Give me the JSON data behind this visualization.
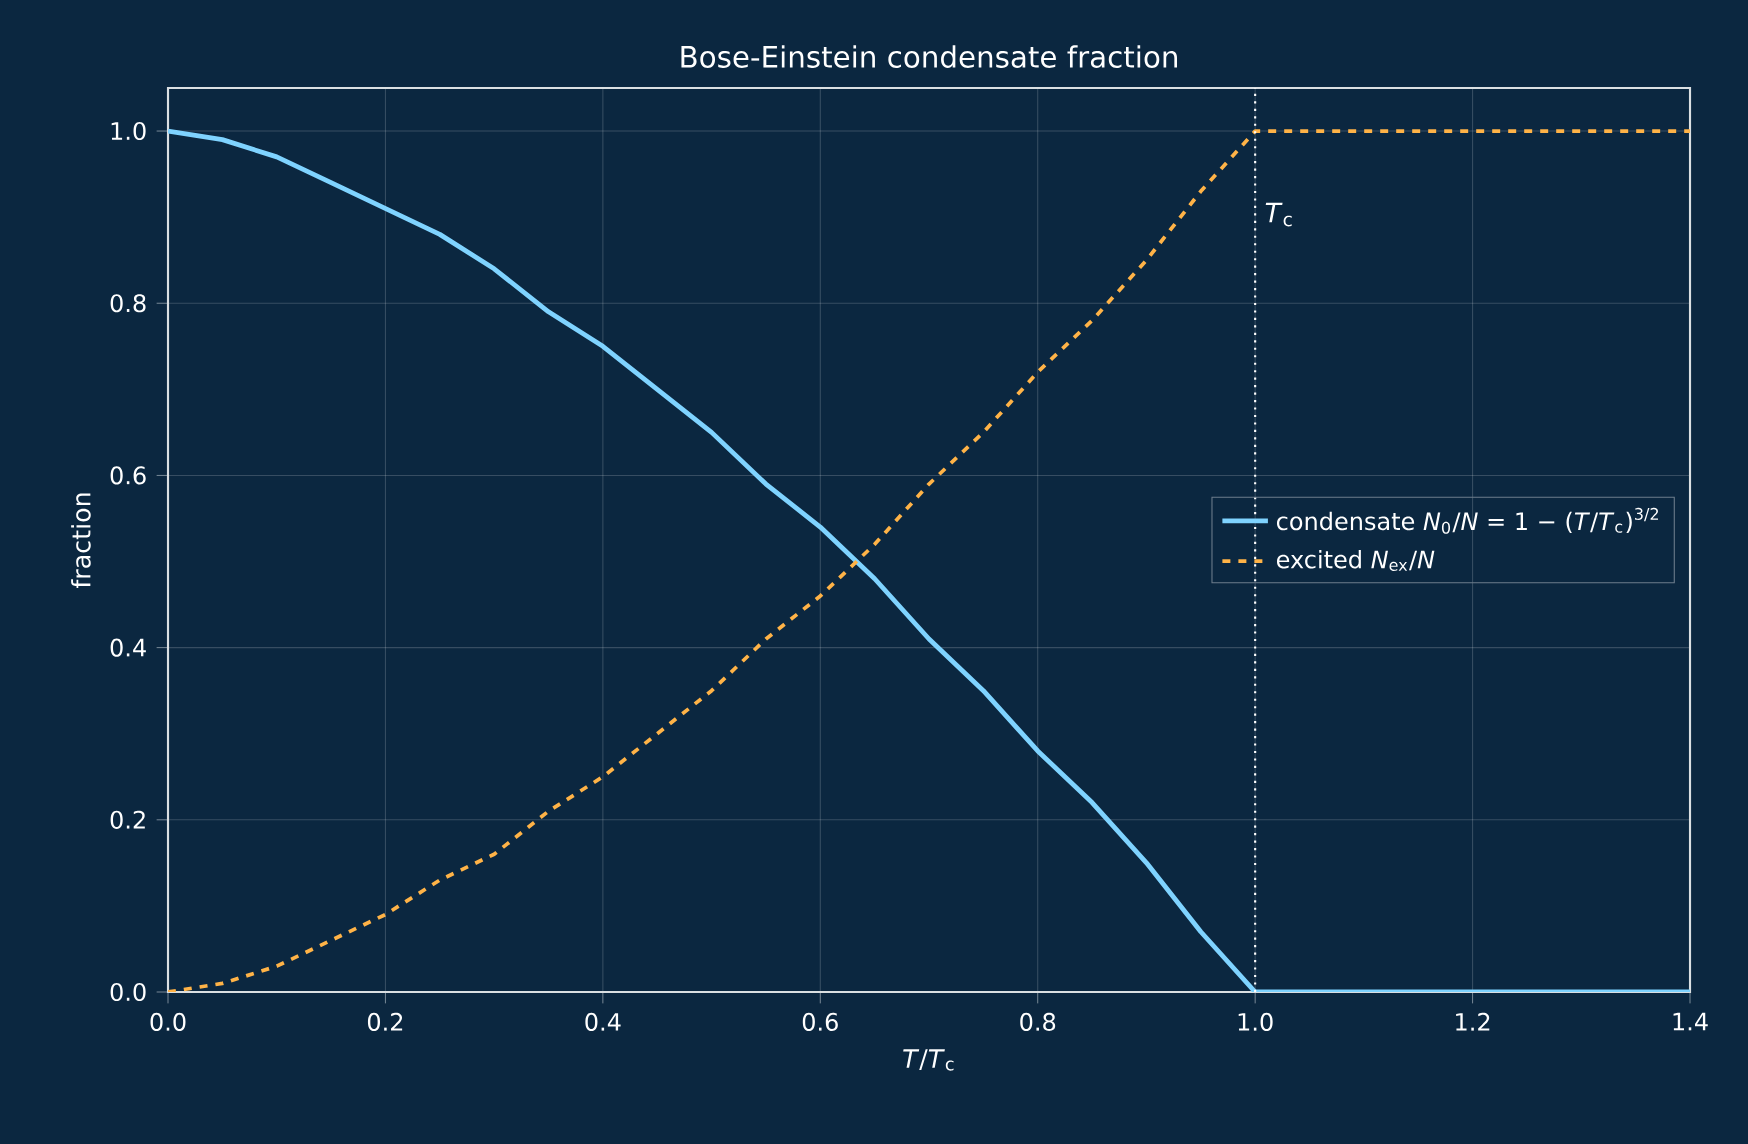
{
  "chart_data": {
    "type": "line",
    "title": "Bose-Einstein condensate fraction",
    "xlabel": "*T*/*T*$_{c}$",
    "ylabel": "fraction",
    "x": [
      0,
      0.05,
      0.1,
      0.15,
      0.2,
      0.25,
      0.3,
      0.35,
      0.4,
      0.45,
      0.5,
      0.55,
      0.6,
      0.65,
      0.7,
      0.75,
      0.8,
      0.85,
      0.9,
      0.95,
      1.0,
      1.4
    ],
    "series": [
      {
        "name": "condensate *N*$_{0}$/*N* = 1 − (*T*/*T*$_{c}$)$^{3/2}$",
        "color": "#7fd3ff",
        "line_style": "solid",
        "values": [
          1,
          0.99,
          0.97,
          0.94,
          0.91,
          0.88,
          0.84,
          0.79,
          0.75,
          0.7,
          0.65,
          0.59,
          0.54,
          0.48,
          0.41,
          0.35,
          0.28,
          0.22,
          0.15,
          0.07,
          0,
          0
        ]
      },
      {
        "name": "excited *N*$_{ex}$/*N*",
        "color": "#ffb347",
        "line_style": "dashed",
        "values": [
          0,
          0.01,
          0.03,
          0.06,
          0.09,
          0.13,
          0.16,
          0.21,
          0.25,
          0.3,
          0.35,
          0.41,
          0.46,
          0.52,
          0.59,
          0.65,
          0.72,
          0.78,
          0.85,
          0.93,
          1.0,
          1.0
        ]
      }
    ],
    "xlim": [
      0,
      1.4
    ],
    "ylim": [
      0,
      1.05
    ],
    "xticks": [
      {
        "value": 0,
        "label": "0.0"
      },
      0.2,
      0.4,
      0.6,
      0.8,
      {
        "value": 1,
        "label": "1.0"
      },
      1.2,
      1.4
    ],
    "yticks": [
      {
        "value": 0,
        "label": "0.0"
      },
      0.2,
      0.4,
      0.6,
      0.8,
      {
        "value": 1,
        "label": "1.0"
      }
    ],
    "ref_lines": [
      {
        "axis": "x",
        "value": 1,
        "label": "*T*$_{c}$",
        "color": "#ffffff",
        "line_style": "dotted"
      }
    ],
    "grid": true,
    "legend": "right",
    "marker": "none"
  }
}
